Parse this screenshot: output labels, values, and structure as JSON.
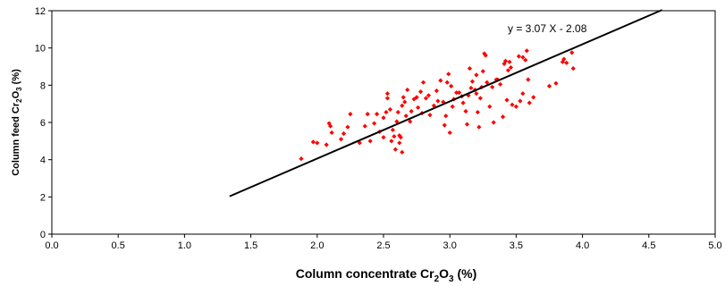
{
  "chart_data": {
    "type": "scatter",
    "xlabel_text": "Column concentrate Cr",
    "xlabel_sub": "2",
    "xlabel_mid": "O",
    "xlabel_sub2": "3",
    "xlabel_unit": " (%)",
    "ylabel_text": "Column feed Cr",
    "ylabel_sub": "2",
    "ylabel_mid": "O",
    "ylabel_sub2": "3",
    "ylabel_unit": " (%)",
    "xlim": [
      0.0,
      5.0
    ],
    "ylim": [
      0,
      12
    ],
    "xticks": [
      "0.0",
      "0.5",
      "1.0",
      "1.5",
      "2.0",
      "2.5",
      "3.0",
      "3.5",
      "4.0",
      "4.5",
      "5.0"
    ],
    "yticks": [
      "0",
      "2",
      "4",
      "6",
      "8",
      "10",
      "12"
    ],
    "grid": false,
    "marker_color": "#ff0000",
    "line_color": "#000000",
    "trendline": {
      "slope": 3.07,
      "intercept": -2.08,
      "x_start": 1.34,
      "x_end": 4.6,
      "label": "y = 3.07 X - 2.08"
    },
    "points": [
      [
        1.88,
        4.05
      ],
      [
        1.97,
        4.95
      ],
      [
        2.0,
        4.9
      ],
      [
        2.07,
        4.8
      ],
      [
        2.09,
        5.95
      ],
      [
        2.1,
        5.8
      ],
      [
        2.11,
        5.45
      ],
      [
        2.18,
        5.1
      ],
      [
        2.2,
        5.4
      ],
      [
        2.23,
        5.75
      ],
      [
        2.25,
        6.45
      ],
      [
        2.32,
        4.9
      ],
      [
        2.36,
        5.8
      ],
      [
        2.38,
        6.45
      ],
      [
        2.4,
        5.0
      ],
      [
        2.43,
        5.95
      ],
      [
        2.45,
        6.45
      ],
      [
        2.47,
        5.5
      ],
      [
        2.5,
        5.2
      ],
      [
        2.5,
        6.25
      ],
      [
        2.52,
        6.55
      ],
      [
        2.53,
        7.3
      ],
      [
        2.53,
        7.55
      ],
      [
        2.55,
        6.7
      ],
      [
        2.56,
        5.0
      ],
      [
        2.57,
        5.6
      ],
      [
        2.58,
        5.25
      ],
      [
        2.59,
        4.55
      ],
      [
        2.6,
        6.05
      ],
      [
        2.61,
        6.55
      ],
      [
        2.62,
        5.3
      ],
      [
        2.62,
        4.9
      ],
      [
        2.63,
        5.2
      ],
      [
        2.64,
        4.4
      ],
      [
        2.64,
        6.9
      ],
      [
        2.65,
        7.35
      ],
      [
        2.66,
        7.1
      ],
      [
        2.67,
        6.35
      ],
      [
        2.68,
        7.75
      ],
      [
        2.7,
        6.05
      ],
      [
        2.71,
        6.6
      ],
      [
        2.73,
        7.25
      ],
      [
        2.75,
        7.35
      ],
      [
        2.76,
        6.8
      ],
      [
        2.78,
        7.65
      ],
      [
        2.79,
        6.5
      ],
      [
        2.8,
        8.15
      ],
      [
        2.82,
        7.3
      ],
      [
        2.84,
        7.45
      ],
      [
        2.85,
        6.4
      ],
      [
        2.88,
        6.9
      ],
      [
        2.9,
        7.7
      ],
      [
        2.91,
        7.15
      ],
      [
        2.93,
        8.25
      ],
      [
        2.95,
        7.1
      ],
      [
        2.96,
        5.85
      ],
      [
        2.97,
        6.35
      ],
      [
        2.98,
        8.15
      ],
      [
        2.99,
        8.6
      ],
      [
        3.0,
        5.45
      ],
      [
        3.01,
        7.95
      ],
      [
        3.02,
        6.85
      ],
      [
        3.03,
        7.25
      ],
      [
        3.05,
        7.6
      ],
      [
        3.07,
        7.6
      ],
      [
        3.09,
        7.4
      ],
      [
        3.1,
        7.05
      ],
      [
        3.12,
        6.6
      ],
      [
        3.13,
        5.9
      ],
      [
        3.14,
        7.45
      ],
      [
        3.15,
        8.9
      ],
      [
        3.16,
        7.85
      ],
      [
        3.17,
        8.2
      ],
      [
        3.19,
        7.75
      ],
      [
        3.2,
        7.55
      ],
      [
        3.2,
        8.55
      ],
      [
        3.22,
        5.75
      ],
      [
        3.23,
        7.3
      ],
      [
        3.24,
        7.9
      ],
      [
        3.25,
        8.75
      ],
      [
        3.26,
        9.7
      ],
      [
        3.27,
        9.6
      ],
      [
        3.28,
        8.15
      ],
      [
        3.3,
        6.85
      ],
      [
        3.32,
        7.9
      ],
      [
        3.33,
        6.0
      ],
      [
        3.35,
        8.3
      ],
      [
        3.36,
        8.3
      ],
      [
        3.38,
        8.05
      ],
      [
        3.4,
        6.3
      ],
      [
        3.41,
        9.15
      ],
      [
        3.42,
        9.3
      ],
      [
        3.43,
        7.2
      ],
      [
        3.44,
        8.8
      ],
      [
        3.45,
        9.25
      ],
      [
        3.46,
        8.95
      ],
      [
        3.47,
        6.95
      ],
      [
        3.5,
        6.85
      ],
      [
        3.52,
        9.55
      ],
      [
        3.53,
        7.15
      ],
      [
        3.55,
        7.55
      ],
      [
        3.57,
        9.35
      ],
      [
        3.58,
        9.85
      ],
      [
        3.59,
        8.3
      ],
      [
        3.6,
        7.05
      ],
      [
        3.63,
        7.35
      ],
      [
        3.75,
        7.95
      ],
      [
        3.8,
        8.1
      ],
      [
        3.85,
        9.25
      ],
      [
        3.86,
        9.4
      ],
      [
        3.88,
        9.2
      ],
      [
        3.92,
        9.75
      ],
      [
        3.93,
        8.9
      ],
      [
        3.55,
        9.5
      ],
      [
        3.21,
        6.55
      ]
    ]
  }
}
